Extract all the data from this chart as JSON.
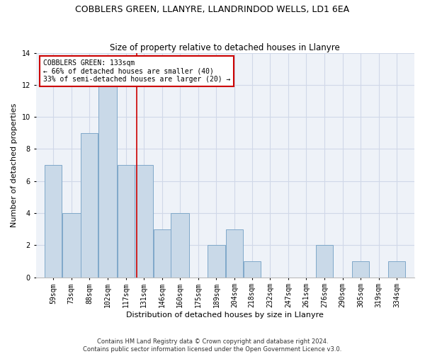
{
  "title1": "COBBLERS GREEN, LLANYRE, LLANDRINDOD WELLS, LD1 6EA",
  "title2": "Size of property relative to detached houses in Llanyre",
  "xlabel": "Distribution of detached houses by size in Llanyre",
  "ylabel": "Number of detached properties",
  "footer": "Contains HM Land Registry data © Crown copyright and database right 2024.\nContains public sector information licensed under the Open Government Licence v3.0.",
  "bin_edges": [
    59,
    73,
    88,
    102,
    117,
    131,
    146,
    160,
    175,
    189,
    204,
    218,
    232,
    247,
    261,
    276,
    290,
    305,
    319,
    334,
    348
  ],
  "bar_heights": [
    7,
    4,
    9,
    12,
    7,
    7,
    3,
    4,
    0,
    2,
    3,
    1,
    0,
    0,
    0,
    2,
    0,
    1,
    0,
    1
  ],
  "bar_color": "#c9d9e8",
  "bar_edge_color": "#7fa8c9",
  "vline_x": 133,
  "vline_color": "#cc0000",
  "annotation_text": "COBBLERS GREEN: 133sqm\n← 66% of detached houses are smaller (40)\n33% of semi-detached houses are larger (20) →",
  "annotation_box_color": "white",
  "annotation_box_edge": "#cc0000",
  "ylim": [
    0,
    14
  ],
  "yticks": [
    0,
    2,
    4,
    6,
    8,
    10,
    12,
    14
  ],
  "grid_color": "#d0d8e8",
  "background_color": "#eef2f8",
  "title1_fontsize": 9,
  "title2_fontsize": 8.5,
  "tick_label_fontsize": 7,
  "ylabel_fontsize": 8,
  "xlabel_fontsize": 8,
  "annotation_fontsize": 7,
  "footer_fontsize": 6
}
